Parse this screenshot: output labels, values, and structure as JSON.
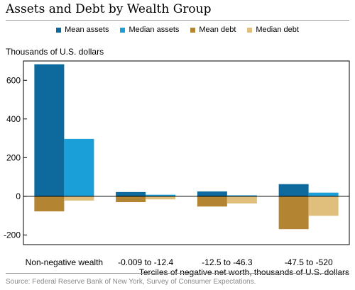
{
  "title": "Assets and Debt by Wealth Group",
  "source": "Source: Federal Reserve Bank of New York, Survey of Consumer Expectations.",
  "chart_data": {
    "type": "bar",
    "ylabel": "Thousands of U.S. dollars",
    "xlabel": "Terciles of negative net worth, thousands of U.S. dollars",
    "categories": [
      "Non-negative wealth",
      "-0.009 to -12.4",
      "-12.5 to -46.3",
      "-47.5 to -520"
    ],
    "ylim": [
      -250,
      700
    ],
    "yticks": [
      -200,
      0,
      200,
      400,
      600
    ],
    "legend_position": "top-center",
    "series": [
      {
        "name": "Mean assets",
        "color": "#0e6a9c",
        "values": [
          683,
          22,
          25,
          63
        ]
      },
      {
        "name": "Median assets",
        "color": "#1a9fd9",
        "values": [
          297,
          8,
          5,
          19
        ]
      },
      {
        "name": "Mean debt",
        "color": "#b38432",
        "values": [
          -78,
          -30,
          -53,
          -170
        ]
      },
      {
        "name": "Median debt",
        "color": "#e0bf7c",
        "values": [
          -22,
          -16,
          -37,
          -101
        ]
      }
    ]
  }
}
